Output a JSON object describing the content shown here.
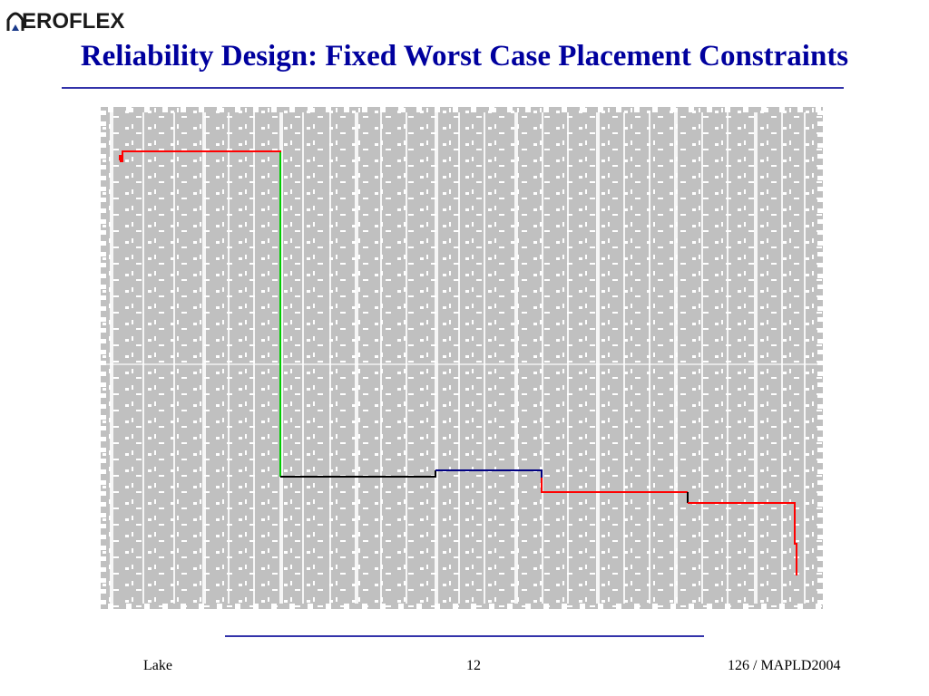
{
  "logo": {
    "text": "EROFLEX",
    "icon": "aeroflex-arch-icon"
  },
  "slide": {
    "title": "Reliability Design: Fixed Worst Case Placement Constraints"
  },
  "figure": {
    "icon": "fpga-floorplan",
    "routes": [
      {
        "color": "#ff0000"
      },
      {
        "color": "#00cc00"
      },
      {
        "color": "#000000"
      },
      {
        "color": "#000080"
      }
    ]
  },
  "footer": {
    "left": "Lake",
    "center": "12",
    "right": "126 / MAPLD2004"
  },
  "colors": {
    "title": "#00009e",
    "rule": "#3333aa",
    "floorplan_fill": "#c0c0c0"
  }
}
